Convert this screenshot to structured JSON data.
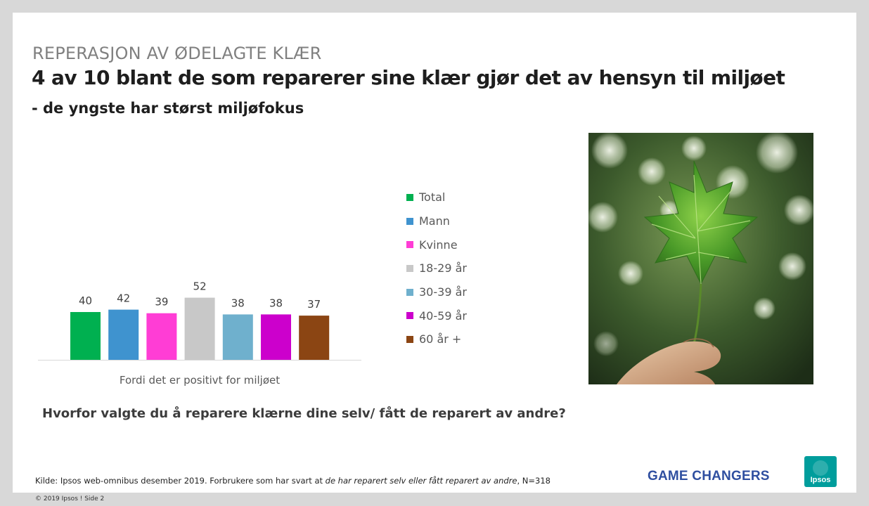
{
  "slide": {
    "kicker": "REPERASJON AV ØDELAGTE KLÆR",
    "headline": "4 av 10 blant de som reparerer sine klær gjør det av hensyn til miljøet",
    "subline": "- de yngste har størst miljøfokus",
    "question": "Hvorfor valgte du å reparere klærne dine selv/ fått de reparert av andre?",
    "source_prefix": "Kilde: Ipsos web-omnibus  desember 2019. Forbrukere  som har svart at ",
    "source_italic": "de har reparert selv eller fått reparert av andre",
    "source_suffix": ", N=318",
    "brand": "GAME CHANGERS",
    "logo_text": "Ipsos",
    "copyright": "© 2019 Ipsos ! Side 2",
    "photo_icon": "leaf-in-hand-photo",
    "colors": {
      "logo_bg": "#009d9c",
      "brand": "#2f4fa0"
    }
  },
  "chart_data": {
    "type": "bar",
    "title": "",
    "categories": [
      "Fordi det er positivt for miljøet"
    ],
    "series": [
      {
        "name": "Total",
        "values": [
          40
        ],
        "color": "#00b050"
      },
      {
        "name": "Mann",
        "values": [
          42
        ],
        "color": "#3f93cf"
      },
      {
        "name": "Kvinne",
        "values": [
          39
        ],
        "color": "#ff3dd5"
      },
      {
        "name": "18-29 år",
        "values": [
          52
        ],
        "color": "#c8c8c8"
      },
      {
        "name": "30-39 år",
        "values": [
          38
        ],
        "color": "#6fb0cd"
      },
      {
        "name": "40-59 år",
        "values": [
          38
        ],
        "color": "#cc00cc"
      },
      {
        "name": "60 år +",
        "values": [
          37
        ],
        "color": "#8b4513"
      }
    ],
    "xlabel": "",
    "ylabel": "",
    "ylim": [
      0,
      100
    ],
    "grid": false,
    "legend": "right",
    "data_labels": true
  }
}
